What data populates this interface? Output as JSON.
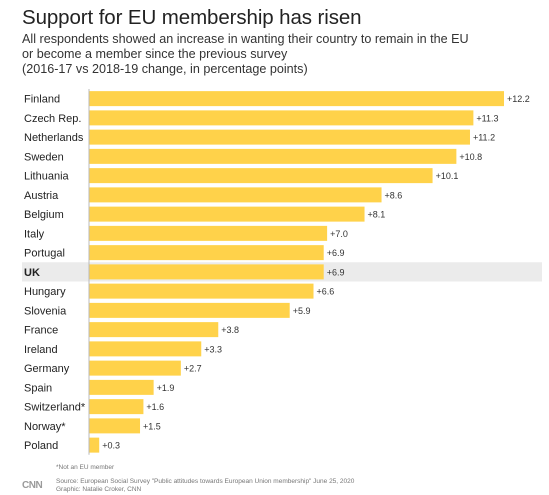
{
  "header": {
    "title": "Support for EU membership has risen",
    "subtitle_lines": [
      "All respondents showed an increase in wanting their country to remain in the EU",
      "or become a member since the previous survey",
      "(2016-17 vs 2018-19 change, in percentage points)"
    ]
  },
  "chart_data": {
    "type": "bar",
    "orientation": "horizontal",
    "categories": [
      "Finland",
      "Czech Rep.",
      "Netherlands",
      "Sweden",
      "Lithuania",
      "Austria",
      "Belgium",
      "Italy",
      "Portugal",
      "UK",
      "Hungary",
      "Slovenia",
      "France",
      "Ireland",
      "Germany",
      "Spain",
      "Switzerland*",
      "Norway*",
      "Poland"
    ],
    "values": [
      12.2,
      11.3,
      11.2,
      10.8,
      10.1,
      8.6,
      8.1,
      7.0,
      6.9,
      6.9,
      6.6,
      5.9,
      3.8,
      3.3,
      2.7,
      1.9,
      1.6,
      1.5,
      0.3
    ],
    "value_labels": [
      "+12.2",
      "+11.3",
      "+11.2",
      "+10.8",
      "+10.1",
      "+8.6",
      "+8.1",
      "+7.0",
      "+6.9",
      "+6.9",
      "+6.6",
      "+5.9",
      "+3.8",
      "+3.3",
      "+2.7",
      "+1.9",
      "+1.6",
      "+1.5",
      "+0.3"
    ],
    "highlight_category": "UK",
    "xlim": [
      0,
      12.2
    ],
    "bar_color": "#ffd24a",
    "highlight_background": "#ebebeb",
    "grid": false,
    "legend": "none"
  },
  "footer": {
    "footnote": "*Not an EU member",
    "source_lines": [
      "Source: European Social Survey \"Public attitudes towards European Union membership\" June 25, 2020",
      "Graphic: Natalie Croker, CNN"
    ],
    "logo_text": "CNN"
  }
}
